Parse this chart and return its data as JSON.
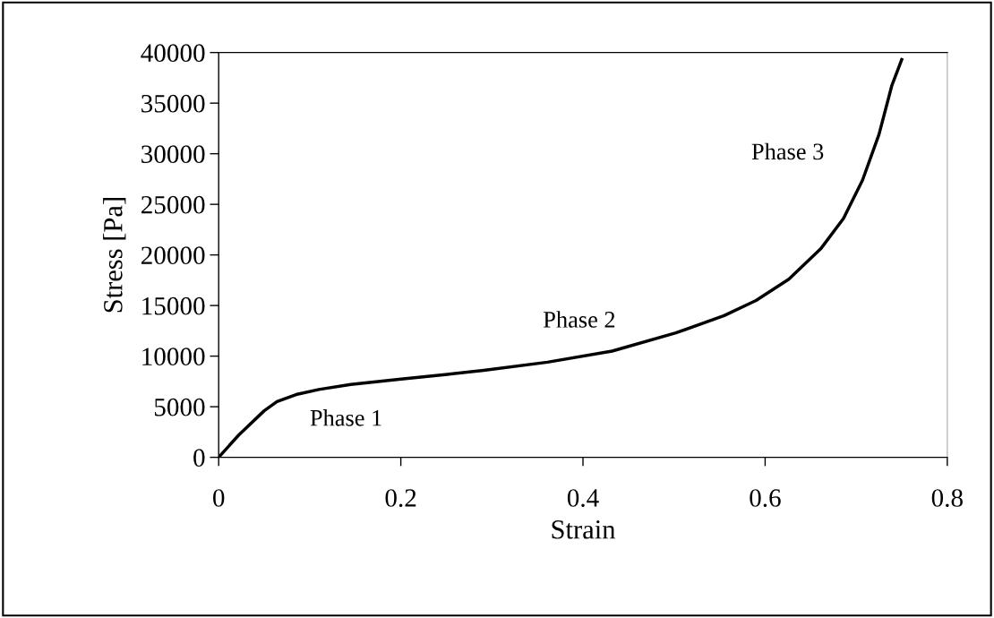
{
  "chart_data": {
    "type": "line",
    "xlabel": "Strain",
    "ylabel": "Stress [Pa]",
    "x": [
      0,
      0.022,
      0.05,
      0.064,
      0.085,
      0.11,
      0.145,
      0.198,
      0.251,
      0.291,
      0.361,
      0.432,
      0.502,
      0.555,
      0.59,
      0.626,
      0.661,
      0.686,
      0.707,
      0.725,
      0.739,
      0.75
    ],
    "series": [
      {
        "color": "#000000",
        "values": [
          0,
          2200,
          4600,
          5500,
          6200,
          6700,
          7200,
          7700,
          8200,
          8600,
          9400,
          10500,
          12300,
          14000,
          15500,
          17600,
          20600,
          23600,
          27400,
          31900,
          36700,
          39300
        ]
      }
    ],
    "xlim": [
      0,
      0.8
    ],
    "ylim": [
      0,
      40000
    ],
    "xticks": [
      0,
      0.2,
      0.4,
      0.6,
      0.8
    ],
    "yticks": [
      0,
      5000,
      10000,
      15000,
      20000,
      25000,
      30000,
      35000,
      40000
    ],
    "annotations": [
      "Phase 1",
      "Phase 2",
      "Phase 3"
    ],
    "grid": false,
    "marker": "none",
    "line_style": "solid"
  }
}
